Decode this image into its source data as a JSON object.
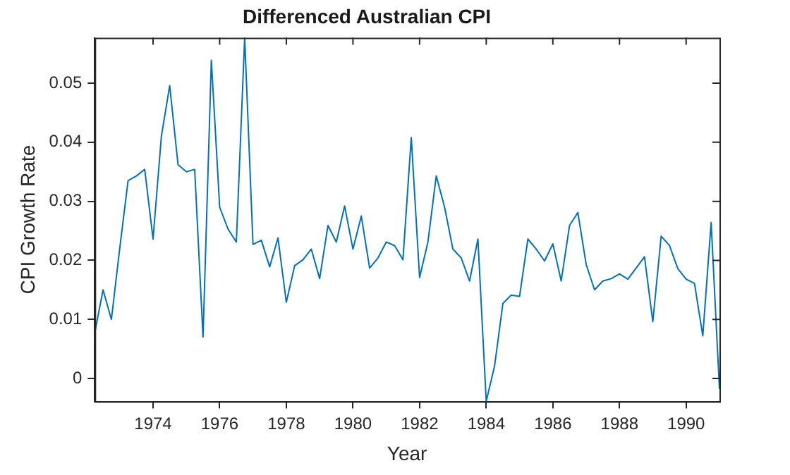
{
  "chart_data": {
    "type": "line",
    "title": "Differenced Australian CPI",
    "xlabel": "Year",
    "ylabel": "CPI Growth Rate",
    "x": [
      1972.25,
      1972.5,
      1972.75,
      1973,
      1973.25,
      1973.5,
      1973.75,
      1974,
      1974.25,
      1974.5,
      1974.75,
      1975,
      1975.25,
      1975.5,
      1975.75,
      1976,
      1976.25,
      1976.5,
      1976.75,
      1977,
      1977.25,
      1977.5,
      1977.75,
      1978,
      1978.25,
      1978.5,
      1978.75,
      1979,
      1979.25,
      1979.5,
      1979.75,
      1980,
      1980.25,
      1980.5,
      1980.75,
      1981,
      1981.25,
      1981.5,
      1981.75,
      1982,
      1982.25,
      1982.5,
      1982.75,
      1983,
      1983.25,
      1983.5,
      1983.75,
      1984,
      1984.25,
      1984.5,
      1984.75,
      1985,
      1985.25,
      1985.5,
      1985.75,
      1986,
      1986.25,
      1986.5,
      1986.75,
      1987,
      1987.25,
      1987.5,
      1987.75,
      1988,
      1988.25,
      1988.5,
      1988.75,
      1989,
      1989.25,
      1989.5,
      1989.75,
      1990,
      1990.25,
      1990.5,
      1990.75,
      1991
    ],
    "series": [
      {
        "color": "#0072bd",
        "values": [
          0.0077,
          0.015,
          0.01,
          0.022,
          0.0335,
          0.0343,
          0.0354,
          0.0236,
          0.041,
          0.0496,
          0.0362,
          0.035,
          0.0354,
          0.007,
          0.0539,
          0.029,
          0.0253,
          0.0231,
          0.0577,
          0.0227,
          0.0234,
          0.0189,
          0.0238,
          0.0129,
          0.0191,
          0.0201,
          0.0219,
          0.0169,
          0.0259,
          0.0231,
          0.0292,
          0.0219,
          0.0275,
          0.0187,
          0.0204,
          0.0231,
          0.0225,
          0.0201,
          0.0408,
          0.0171,
          0.0231,
          0.0343,
          0.029,
          0.0219,
          0.0204,
          0.0165,
          0.0236,
          -0.0039,
          0.0021,
          0.0127,
          0.0141,
          0.0139,
          0.0236,
          0.0219,
          0.0199,
          0.0228,
          0.0165,
          0.0259,
          0.0281,
          0.0193,
          0.015,
          0.0165,
          0.0169,
          0.0177,
          0.0168,
          0.0187,
          0.0206,
          0.0096,
          0.0241,
          0.0225,
          0.0186,
          0.0168,
          0.0161,
          0.0072,
          0.0264,
          -0.0018
        ]
      }
    ],
    "xlim": [
      1972.25,
      1991
    ],
    "xticks": [
      1974,
      1976,
      1978,
      1980,
      1982,
      1984,
      1986,
      1988,
      1990
    ],
    "ylim": [
      -0.0039,
      0.0577
    ],
    "yticks": [
      0,
      0.01,
      0.02,
      0.03,
      0.04,
      0.05
    ],
    "grid": false,
    "legend": false,
    "marker": "none",
    "line_style": "solid"
  }
}
